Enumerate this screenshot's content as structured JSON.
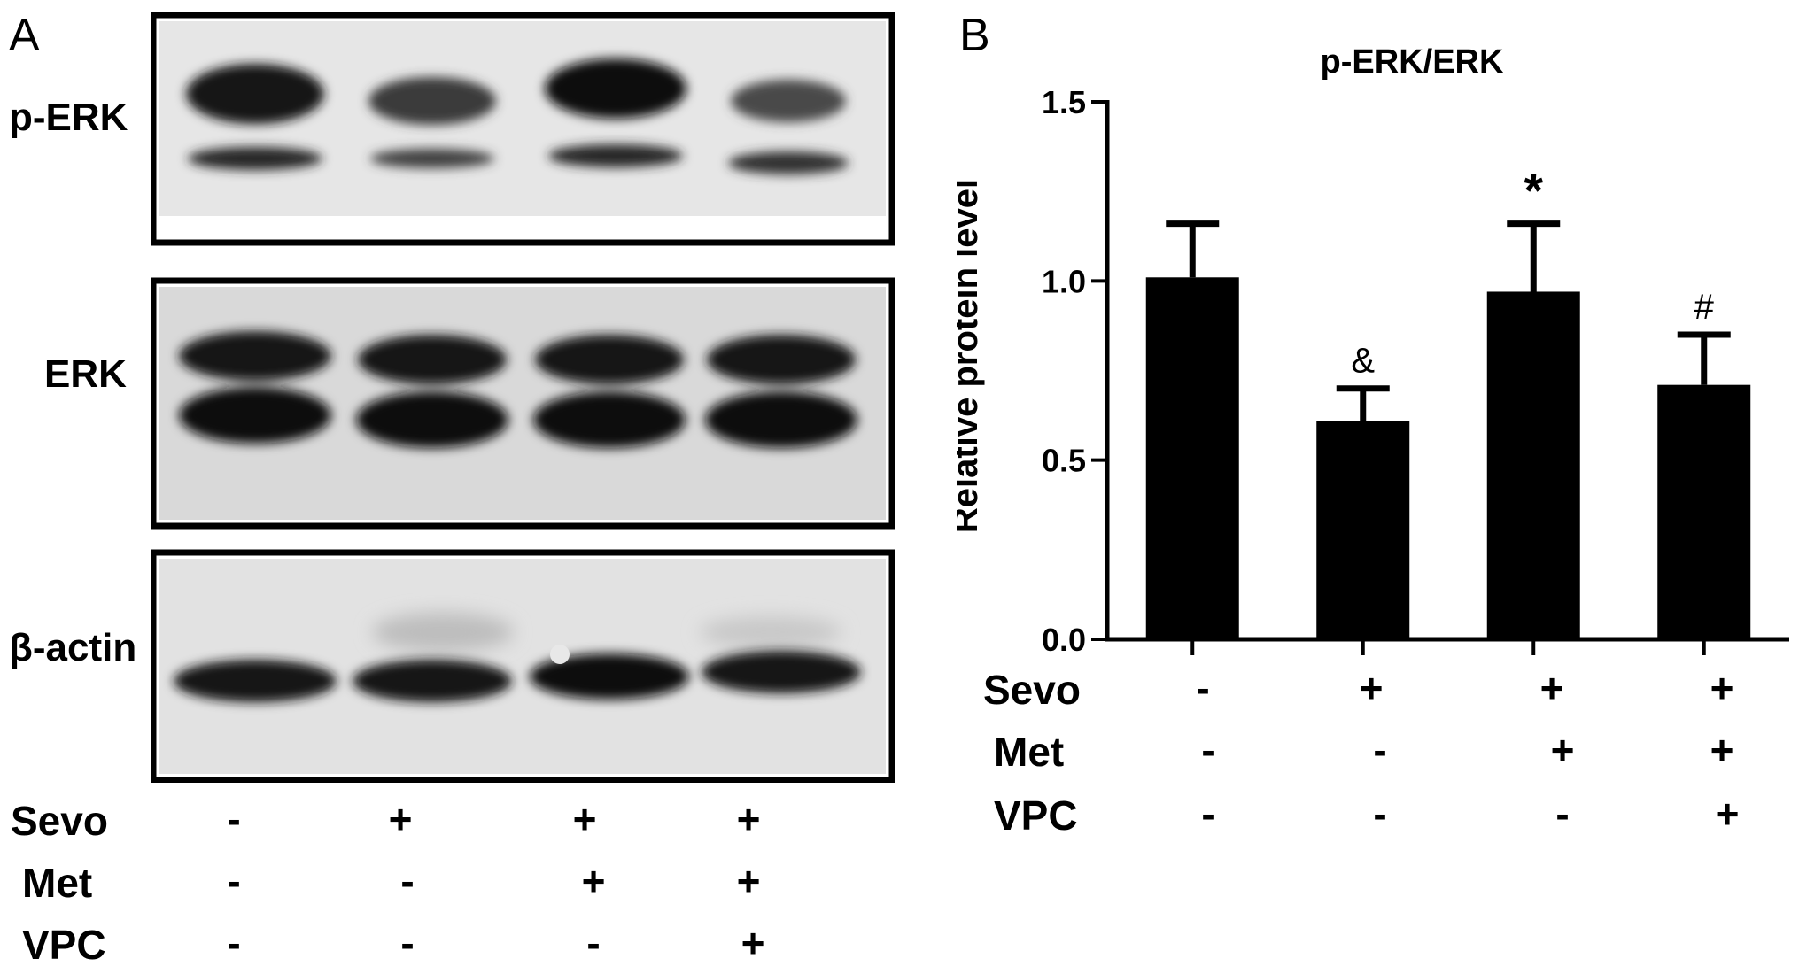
{
  "panel_a": {
    "letter": "A",
    "blots": [
      {
        "label": "p-ERK"
      },
      {
        "label": "ERK"
      },
      {
        "label": "β-actin"
      }
    ],
    "conditions": [
      {
        "name": "Sevo",
        "signs": [
          "-",
          "+",
          "+",
          "+"
        ]
      },
      {
        "name": "Met",
        "signs": [
          "-",
          "-",
          "+",
          "+"
        ]
      },
      {
        "name": "VPC",
        "signs": [
          "-",
          "-",
          "-",
          "+"
        ]
      }
    ]
  },
  "panel_b": {
    "letter": "B",
    "conditions": [
      {
        "name": "Sevo",
        "signs": [
          "-",
          "+",
          "+",
          "+"
        ]
      },
      {
        "name": "Met",
        "signs": [
          "-",
          "-",
          "+",
          "+"
        ]
      },
      {
        "name": "VPC",
        "signs": [
          "-",
          "-",
          "-",
          "+"
        ]
      }
    ]
  },
  "chart_data": {
    "type": "bar",
    "title": "p-ERK/ERK",
    "xlabel": "",
    "ylabel": "Relative protein level",
    "ylim": [
      0,
      1.5
    ],
    "yticks": [
      "0.0",
      "0.5",
      "1.0",
      "1.5"
    ],
    "categories": [
      "",
      "",
      "",
      ""
    ],
    "values": [
      1.01,
      0.61,
      0.97,
      0.71
    ],
    "errors": [
      0.15,
      0.09,
      0.19,
      0.14
    ],
    "annotations": [
      "",
      "&",
      "*",
      "#"
    ],
    "bar_color": "#000000"
  }
}
